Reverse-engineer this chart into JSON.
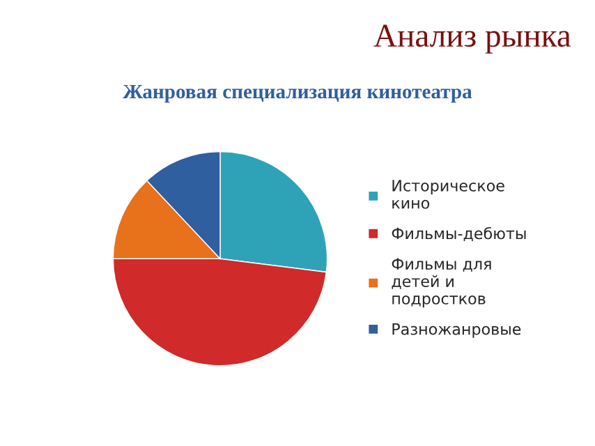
{
  "chart_data": {
    "type": "pie",
    "title": "Анализ рынка",
    "subtitle": "Жанровая специализация кинотеатра",
    "categories": [
      "Историческое кино",
      "Фильмы-дебюты",
      "Фильмы для детей и подростков",
      "Разножанровые"
    ],
    "values": [
      27,
      48,
      13,
      12
    ],
    "colors": [
      "#2ea3b8",
      "#d02a2a",
      "#e8711c",
      "#2f5f9e"
    ],
    "legend": "right"
  }
}
